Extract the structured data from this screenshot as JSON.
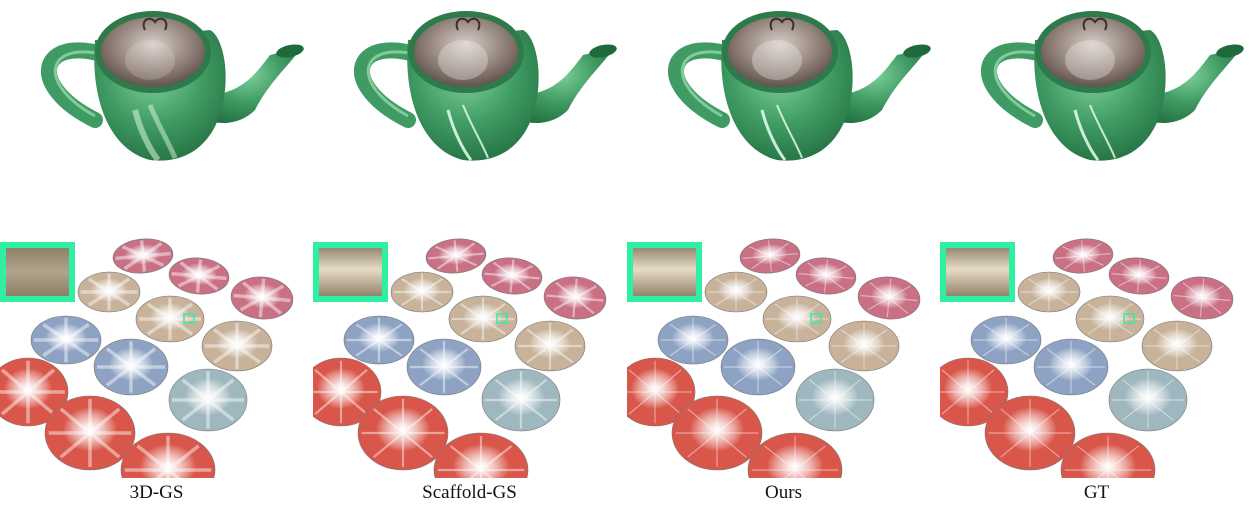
{
  "figure": {
    "columns": [
      {
        "label": "3D-GS",
        "variant": "blurry"
      },
      {
        "label": "Scaffold-GS",
        "variant": "medium"
      },
      {
        "label": "Ours",
        "variant": "sharp"
      },
      {
        "label": "GT",
        "variant": "sharp"
      }
    ],
    "colors": {
      "teapot_body": "#3f9b63",
      "teapot_dark": "#1f6a3c",
      "lid_metal": "#8a7a72",
      "inset_border": "#2ef0a0",
      "disc_beige": "#c8b29a",
      "disc_pink": "#c97084",
      "disc_red": "#d9574a",
      "disc_blue": "#8ea3c4",
      "disc_teal": "#9fb8c0"
    }
  }
}
